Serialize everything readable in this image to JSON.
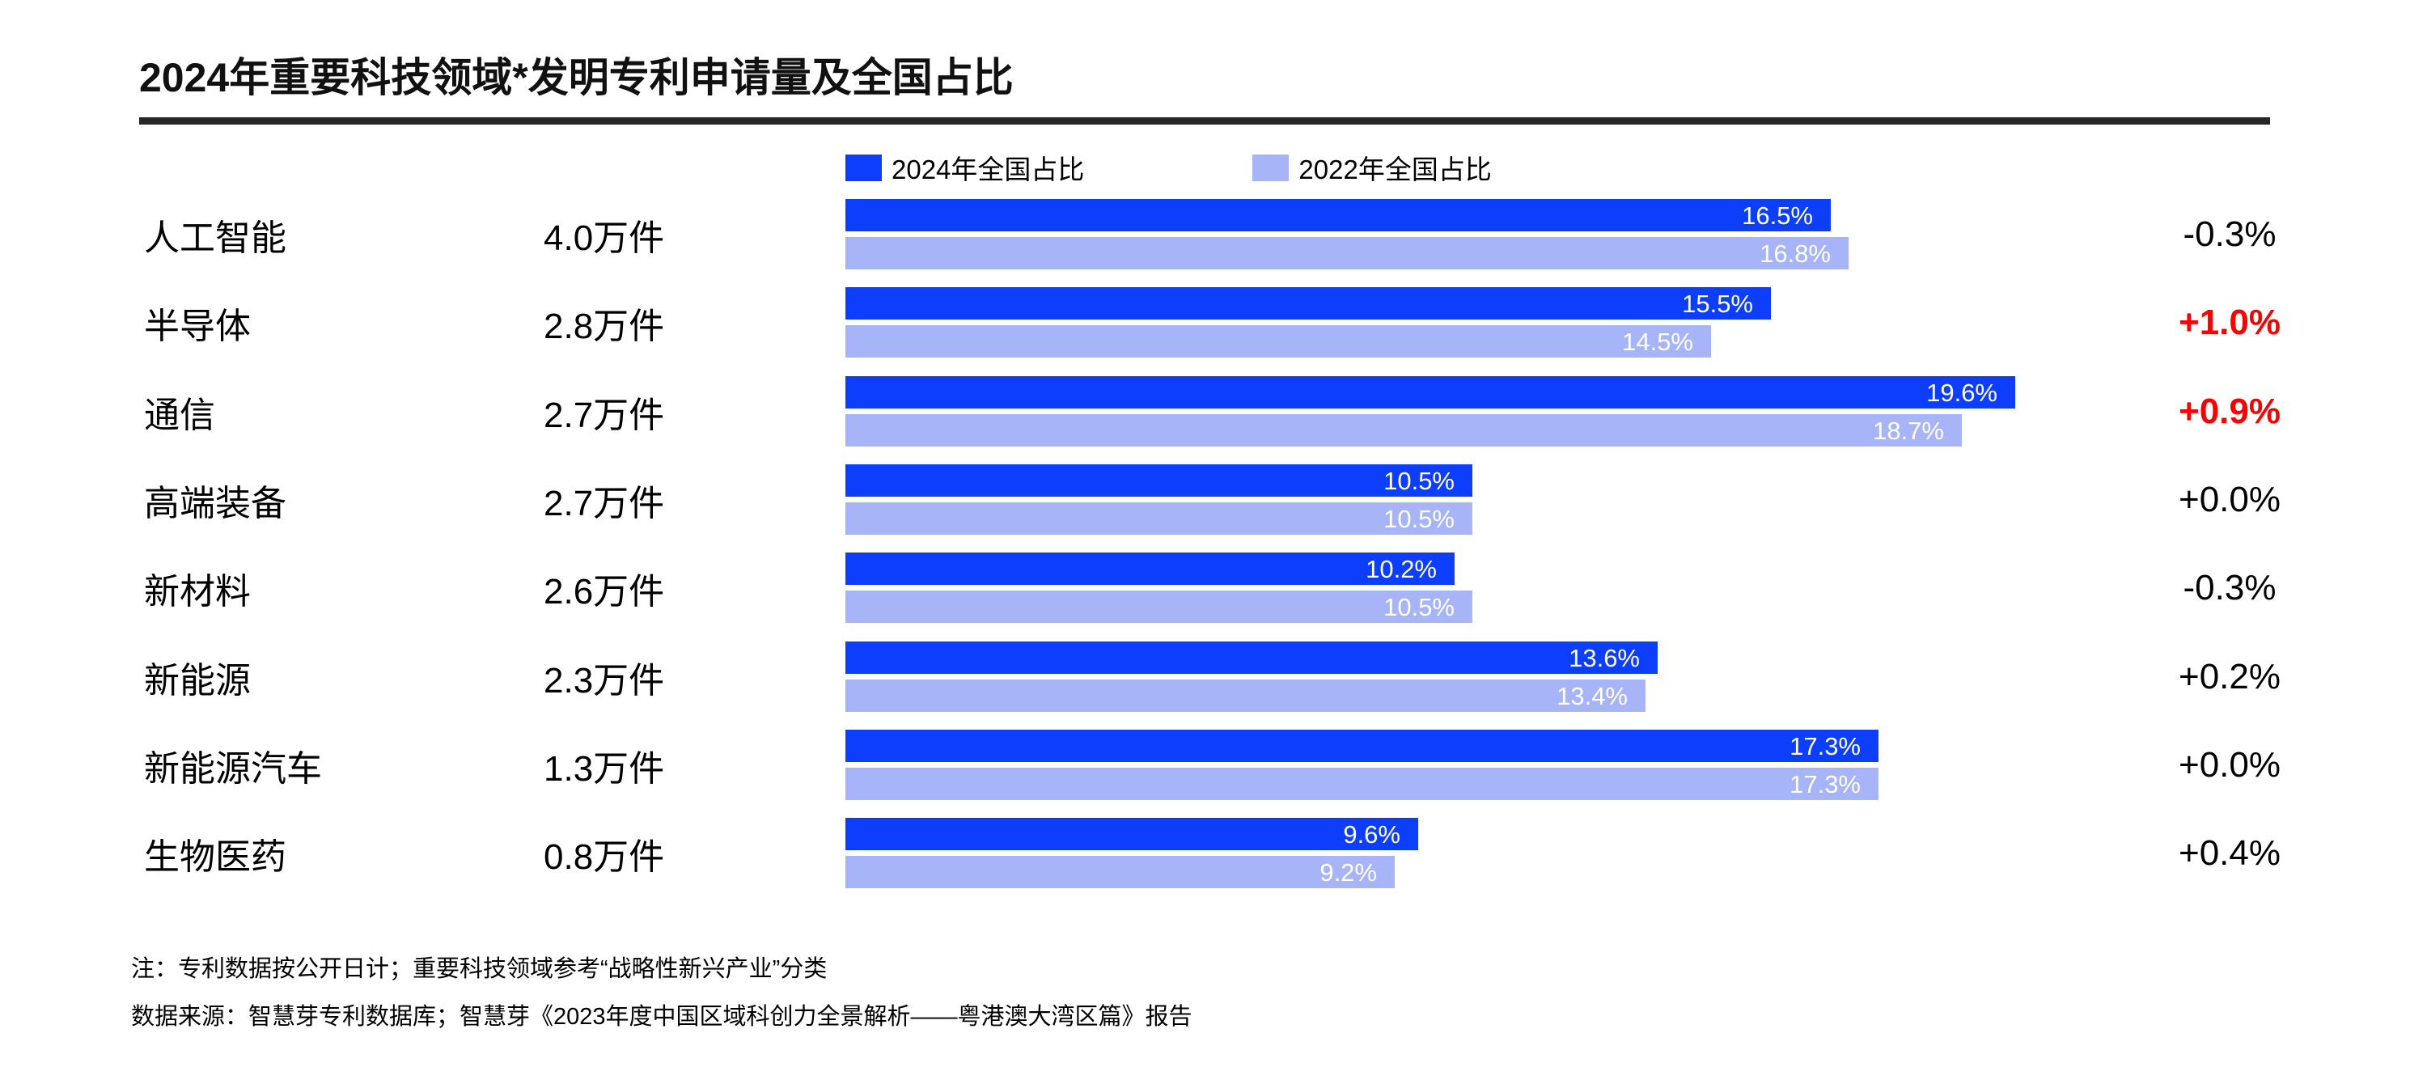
{
  "title": "2024年重要科技领域*发明专利申请量及全国占比",
  "legend": {
    "items": [
      {
        "label": "2024年全国占比",
        "color": "#0d3efc"
      },
      {
        "label": "2022年全国占比",
        "color": "#a7b5f8"
      }
    ]
  },
  "chart_data": {
    "type": "bar",
    "orientation": "horizontal",
    "title": "2024年重要科技领域*发明专利申请量及全国占比",
    "categories": [
      "人工智能",
      "半导体",
      "通信",
      "高端装备",
      "新材料",
      "新能源",
      "新能源汽车",
      "生物医药"
    ],
    "volumes": [
      "4.0万件",
      "2.8万件",
      "2.7万件",
      "2.7万件",
      "2.6万件",
      "2.3万件",
      "1.3万件",
      "0.8万件"
    ],
    "series": [
      {
        "name": "2024年全国占比",
        "color": "#0d3efc",
        "values": [
          16.5,
          15.5,
          19.6,
          10.5,
          10.2,
          13.6,
          17.3,
          9.6
        ],
        "labels": [
          "16.5%",
          "15.5%",
          "19.6%",
          "10.5%",
          "10.2%",
          "13.6%",
          "17.3%",
          "9.6%"
        ]
      },
      {
        "name": "2022年全国占比",
        "color": "#a7b5f8",
        "values": [
          16.8,
          14.5,
          18.7,
          10.5,
          10.5,
          13.4,
          17.3,
          9.2
        ],
        "labels": [
          "16.8%",
          "14.5%",
          "18.7%",
          "10.5%",
          "10.5%",
          "13.4%",
          "17.3%",
          "9.2%"
        ]
      }
    ],
    "deltas": [
      {
        "text": "-0.3%",
        "highlight": false
      },
      {
        "text": "+1.0%",
        "highlight": true
      },
      {
        "text": "+0.9%",
        "highlight": true
      },
      {
        "text": "+0.0%",
        "highlight": false
      },
      {
        "text": "-0.3%",
        "highlight": false
      },
      {
        "text": "+0.2%",
        "highlight": false
      },
      {
        "text": "+0.0%",
        "highlight": false
      },
      {
        "text": "+0.4%",
        "highlight": false
      }
    ],
    "xlim": [
      0,
      20
    ],
    "grid": false,
    "legend_position": "top",
    "value_labels": "inside-end"
  },
  "notes": {
    "line1": "注：专利数据按公开日计；重要科技领域参考“战略性新兴产业”分类",
    "line2": "数据来源：智慧芽专利数据库；智慧芽《2023年度中国区域科创力全景解析——粤港澳大湾区篇》报告"
  },
  "colors": {
    "bar_2024": "#0d3efc",
    "bar_2022": "#a7b5f8",
    "delta_highlight": "#ff0000",
    "delta_normal": "#000000",
    "title_rule": "#262626",
    "bar_label_text": "#ffffff"
  }
}
